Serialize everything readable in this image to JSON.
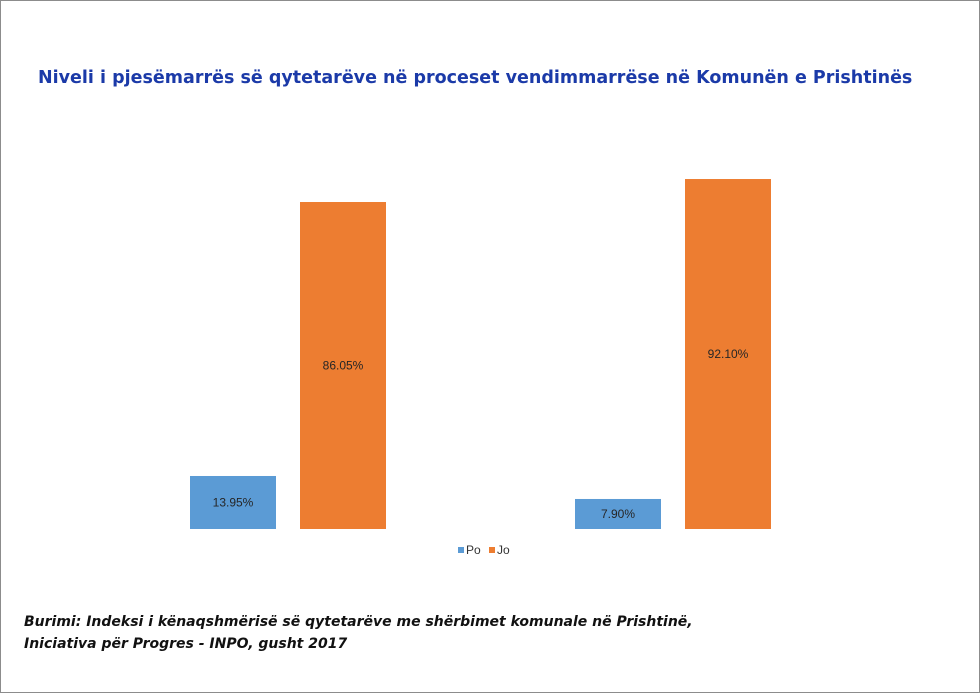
{
  "chart_data": {
    "type": "bar",
    "title": "Niveli i pjesëmarrës së qytetarëve në proceset vendimmarrëse në Komunën e Prishtinës",
    "categories": [
      "",
      ""
    ],
    "series": [
      {
        "name": "Po",
        "color": "#5b9bd5",
        "values": [
          13.95,
          7.9
        ],
        "labels": [
          "13.95%",
          "7.90%"
        ]
      },
      {
        "name": "Jo",
        "color": "#ed7d31",
        "values": [
          86.05,
          92.1
        ],
        "labels": [
          "86.05%",
          "92.10%"
        ]
      }
    ],
    "ylim": [
      0,
      100
    ],
    "xlabel": "",
    "ylabel": "",
    "grid": false,
    "legend": "bottom-center",
    "data_labels": "inside-center"
  },
  "source": {
    "line1": "Burimi: Indeksi i kënaqshmërisë së qytetarëve me shërbimet komunale në Prishtinë,",
    "line2": "Iniciativa për Progres - INPO, gusht 2017"
  }
}
